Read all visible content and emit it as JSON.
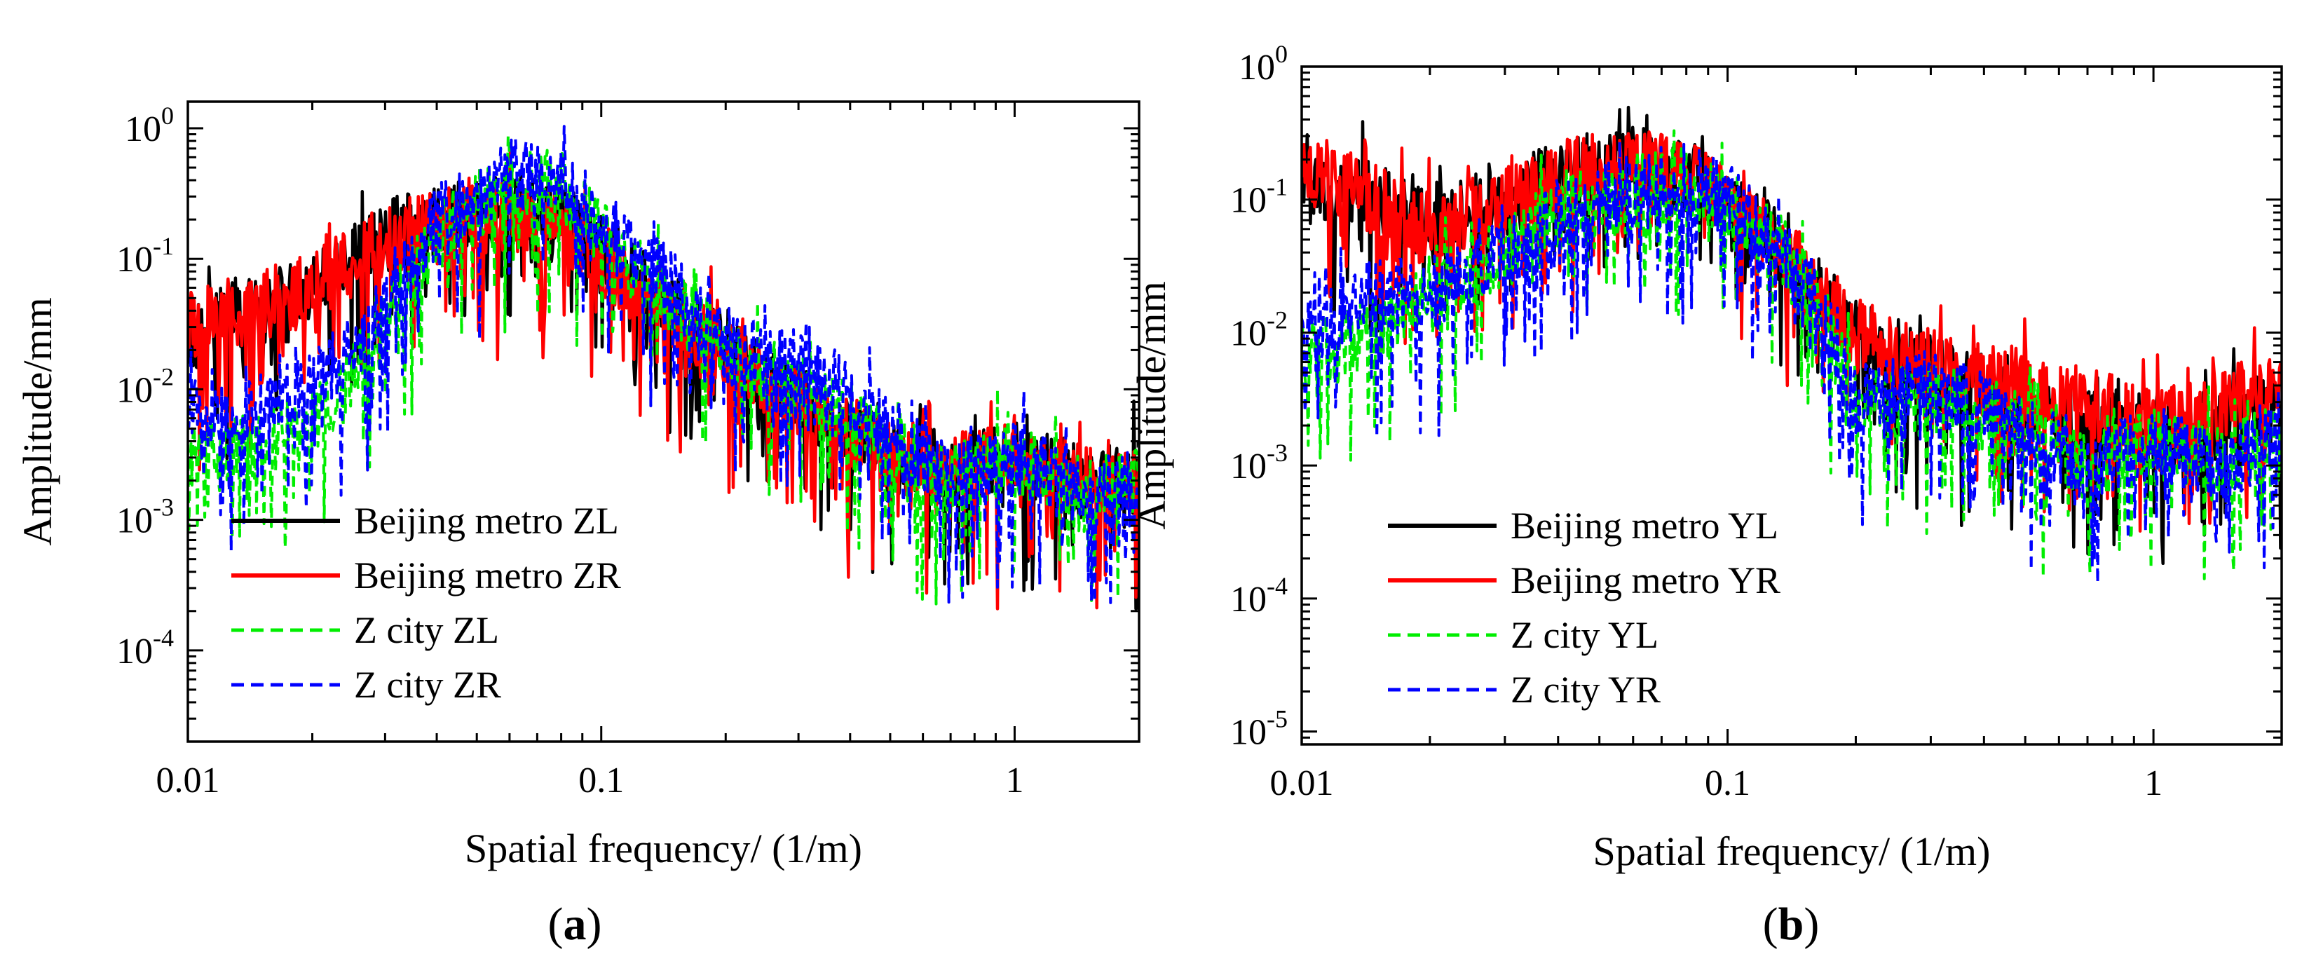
{
  "chart_data": [
    {
      "type": "line",
      "panel_label": "(a)",
      "panel_letter": "a",
      "xlabel": "Spatial frequency/ (1/m)",
      "ylabel": "Amplitude/mm",
      "xscale": "log",
      "yscale": "log",
      "xlim": [
        0.01,
        2
      ],
      "ylim": [
        2e-05,
        1.6
      ],
      "x_ticks": [
        {
          "value": 0.01,
          "label": "0.01"
        },
        {
          "value": 0.1,
          "label": "0.1"
        },
        {
          "value": 1,
          "label": "1"
        }
      ],
      "y_ticks": [
        {
          "value": 1,
          "mantissa": "10",
          "exp": "0"
        },
        {
          "value": 0.1,
          "mantissa": "10",
          "exp": "-1"
        },
        {
          "value": 0.01,
          "mantissa": "10",
          "exp": "-2"
        },
        {
          "value": 0.001,
          "mantissa": "10",
          "exp": "-3"
        },
        {
          "value": 0.0001,
          "mantissa": "10",
          "exp": "-4"
        }
      ],
      "legend_position": "bottom-left",
      "series": [
        {
          "name": "Beijing metro ZL",
          "color": "#000000",
          "style": "solid",
          "x": [
            0.01,
            0.015,
            0.02,
            0.03,
            0.04,
            0.06,
            0.08,
            0.1,
            0.15,
            0.2,
            0.3,
            0.5,
            0.7,
            1,
            1.5,
            2
          ],
          "y": [
            0.025,
            0.04,
            0.06,
            0.15,
            0.2,
            0.25,
            0.2,
            0.12,
            0.04,
            0.02,
            0.008,
            0.003,
            0.0025,
            0.003,
            0.002,
            0.002
          ]
        },
        {
          "name": "Beijing metro ZR",
          "color": "#ff0000",
          "style": "solid",
          "x": [
            0.01,
            0.015,
            0.02,
            0.03,
            0.04,
            0.06,
            0.08,
            0.1,
            0.15,
            0.2,
            0.3,
            0.5,
            0.7,
            1,
            1.5,
            2
          ],
          "y": [
            0.03,
            0.045,
            0.06,
            0.14,
            0.18,
            0.22,
            0.18,
            0.1,
            0.035,
            0.02,
            0.008,
            0.003,
            0.0025,
            0.003,
            0.002,
            0.002
          ]
        },
        {
          "name": "Z city ZL",
          "color": "#00ee00",
          "style": "dashed",
          "x": [
            0.01,
            0.015,
            0.02,
            0.03,
            0.04,
            0.06,
            0.08,
            0.1,
            0.15,
            0.2,
            0.3,
            0.5,
            0.7,
            1,
            1.5,
            2
          ],
          "y": [
            0.003,
            0.004,
            0.005,
            0.03,
            0.15,
            0.4,
            0.35,
            0.15,
            0.05,
            0.02,
            0.01,
            0.004,
            0.002,
            0.003,
            0.0015,
            0.002
          ]
        },
        {
          "name": "Z city ZR",
          "color": "#0000ff",
          "style": "dashed",
          "x": [
            0.01,
            0.015,
            0.02,
            0.03,
            0.04,
            0.06,
            0.08,
            0.1,
            0.15,
            0.2,
            0.3,
            0.5,
            0.7,
            1,
            1.5,
            2
          ],
          "y": [
            0.006,
            0.008,
            0.01,
            0.04,
            0.2,
            0.45,
            0.4,
            0.18,
            0.06,
            0.02,
            0.02,
            0.005,
            0.002,
            0.003,
            0.0015,
            0.002
          ]
        }
      ]
    },
    {
      "type": "line",
      "panel_label": "(b)",
      "panel_letter": "b",
      "xlabel": "Spatial frequency/ (1/m)",
      "ylabel": "Amplitude/mm",
      "xscale": "log",
      "yscale": "log",
      "xlim": [
        0.01,
        2
      ],
      "ylim": [
        8e-06,
        1
      ],
      "x_ticks": [
        {
          "value": 0.01,
          "label": "0.01"
        },
        {
          "value": 0.1,
          "label": "0.1"
        },
        {
          "value": 1,
          "label": "1"
        }
      ],
      "y_ticks": [
        {
          "value": 1,
          "mantissa": "10",
          "exp": "0"
        },
        {
          "value": 0.1,
          "mantissa": "10",
          "exp": "-1"
        },
        {
          "value": 0.01,
          "mantissa": "10",
          "exp": "-2"
        },
        {
          "value": 0.001,
          "mantissa": "10",
          "exp": "-3"
        },
        {
          "value": 0.0001,
          "mantissa": "10",
          "exp": "-4"
        },
        {
          "value": 1e-05,
          "mantissa": "10",
          "exp": "-5"
        }
      ],
      "legend_position": "bottom-left",
      "series": [
        {
          "name": "Beijing metro YL",
          "color": "#000000",
          "style": "solid",
          "x": [
            0.01,
            0.015,
            0.02,
            0.03,
            0.04,
            0.06,
            0.08,
            0.1,
            0.15,
            0.2,
            0.3,
            0.5,
            0.7,
            1,
            1.5,
            2
          ],
          "y": [
            0.15,
            0.1,
            0.06,
            0.1,
            0.15,
            0.2,
            0.15,
            0.1,
            0.03,
            0.01,
            0.005,
            0.003,
            0.002,
            0.002,
            0.002,
            0.003
          ]
        },
        {
          "name": "Beijing metro YR",
          "color": "#ff0000",
          "style": "solid",
          "x": [
            0.01,
            0.015,
            0.02,
            0.03,
            0.04,
            0.06,
            0.08,
            0.1,
            0.15,
            0.2,
            0.3,
            0.5,
            0.7,
            1,
            1.5,
            2
          ],
          "y": [
            0.18,
            0.1,
            0.06,
            0.1,
            0.15,
            0.2,
            0.15,
            0.1,
            0.03,
            0.01,
            0.006,
            0.004,
            0.003,
            0.002,
            0.003,
            0.004
          ]
        },
        {
          "name": "Z city YL",
          "color": "#00ee00",
          "style": "dashed",
          "x": [
            0.01,
            0.015,
            0.02,
            0.03,
            0.04,
            0.06,
            0.08,
            0.1,
            0.15,
            0.2,
            0.3,
            0.5,
            0.7,
            1,
            1.5,
            2
          ],
          "y": [
            0.006,
            0.01,
            0.02,
            0.04,
            0.08,
            0.12,
            0.15,
            0.1,
            0.03,
            0.003,
            0.003,
            0.002,
            0.001,
            0.0015,
            0.001,
            0.002
          ]
        },
        {
          "name": "Z city YR",
          "color": "#0000ff",
          "style": "dashed",
          "x": [
            0.01,
            0.015,
            0.02,
            0.03,
            0.04,
            0.06,
            0.08,
            0.1,
            0.15,
            0.2,
            0.3,
            0.5,
            0.7,
            1,
            1.5,
            2
          ],
          "y": [
            0.01,
            0.02,
            0.02,
            0.04,
            0.08,
            0.12,
            0.15,
            0.1,
            0.03,
            0.003,
            0.004,
            0.002,
            0.001,
            0.0015,
            0.001,
            0.002
          ]
        }
      ]
    }
  ]
}
